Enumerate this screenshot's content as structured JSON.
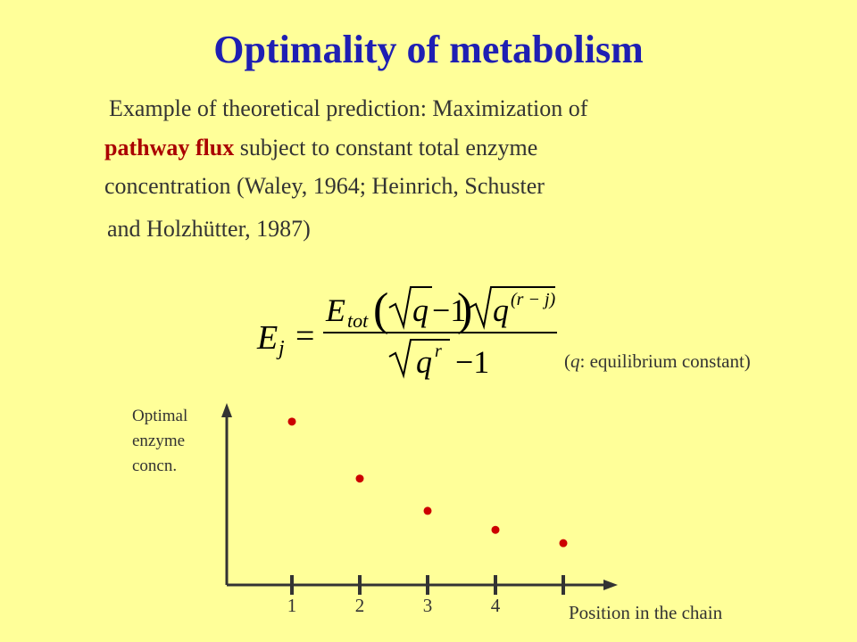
{
  "slide": {
    "title": "Optimality of metabolism",
    "intro_1": "Example of theoretical prediction: Maximization of",
    "intro_2_highlight": "pathway flux",
    "intro_2_rest": "subject to constant total enzyme",
    "intro_3": "concentration (Waley, 1964; Heinrich, Schuster",
    "intro_4": "and Holzhütter, 1987)",
    "note_var": "q",
    "note_rest": ": equilibrium constant)",
    "note_open": "(",
    "formula": {
      "lhs": "E",
      "lhs_sub": "j",
      "eq": "=",
      "num_E": "E",
      "num_E_sub": "tot",
      "q": "q",
      "minus_one": "−1",
      "exp_num": "(r − j)",
      "den_exp": "r"
    },
    "highlight_color": "#aa0000",
    "title_color": "#1f1fb3"
  },
  "chart_data": {
    "type": "scatter",
    "ylabel_lines": [
      "Optimal",
      "enzyme",
      "concn."
    ],
    "xlabel": "Position in the chain",
    "x_ticks": [
      1,
      2,
      3,
      4,
      5
    ],
    "x_tick_labels": [
      "1",
      "2",
      "3",
      "4",
      ""
    ],
    "points": [
      {
        "x": 1,
        "y": 0.86
      },
      {
        "x": 2,
        "y": 0.56
      },
      {
        "x": 3,
        "y": 0.39
      },
      {
        "x": 4,
        "y": 0.29
      },
      {
        "x": 5,
        "y": 0.22
      }
    ],
    "ylim": [
      0,
      1
    ],
    "xlim": [
      0,
      5.5
    ],
    "point_color": "#cc0000"
  }
}
